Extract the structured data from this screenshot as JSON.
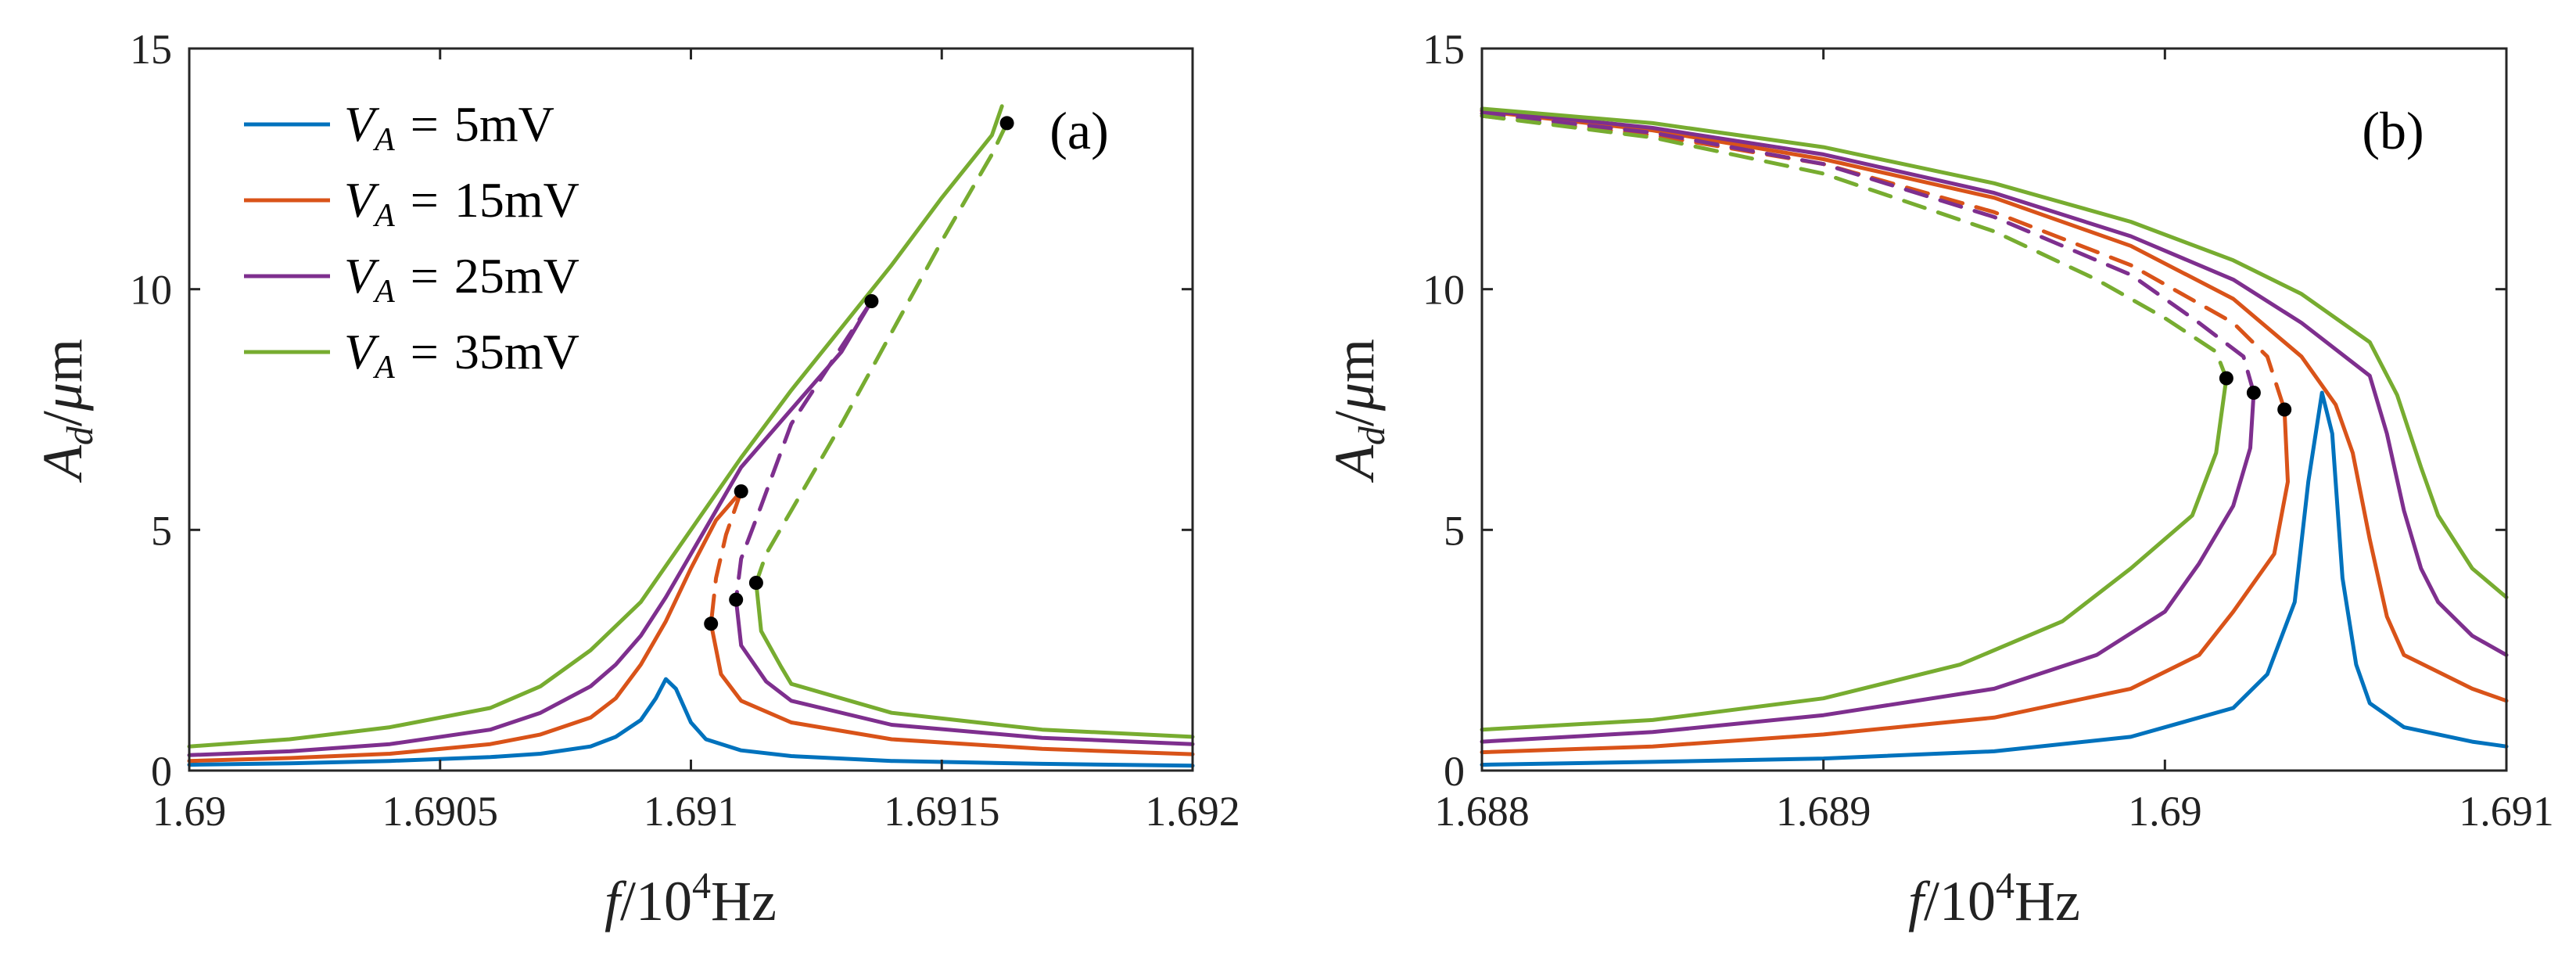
{
  "chart_data": [
    {
      "type": "line",
      "panel_label": "(a)",
      "xlabel": "f/10^4Hz",
      "ylabel": "A_d/μm",
      "xlim": [
        1.69,
        1.692
      ],
      "ylim": [
        0,
        15
      ],
      "xticks": [
        1.69,
        1.6905,
        1.691,
        1.6915,
        1.692
      ],
      "xtick_labels": [
        "1.69",
        "1.6905",
        "1.691",
        "1.6915",
        "1.692"
      ],
      "yticks": [
        0,
        5,
        10,
        15
      ],
      "ytick_labels": [
        "0",
        "5",
        "10",
        "15"
      ],
      "legend_position": "top-left",
      "series": [
        {
          "name": "V_A = 5mV",
          "legend_var": "V",
          "legend_sub": "A",
          "legend_eq": "=",
          "legend_val": "5mV",
          "color": "#0072BD",
          "style": "solid",
          "points": [
            [
              1.69,
              0.12
            ],
            [
              1.6902,
              0.15
            ],
            [
              1.6904,
              0.2
            ],
            [
              1.6906,
              0.28
            ],
            [
              1.6907,
              0.35
            ],
            [
              1.6908,
              0.5
            ],
            [
              1.69085,
              0.7
            ],
            [
              1.6909,
              1.05
            ],
            [
              1.69093,
              1.5
            ],
            [
              1.69095,
              1.9
            ],
            [
              1.69097,
              1.7
            ],
            [
              1.691,
              1.0
            ],
            [
              1.69103,
              0.65
            ],
            [
              1.6911,
              0.42
            ],
            [
              1.6912,
              0.3
            ],
            [
              1.6914,
              0.2
            ],
            [
              1.6917,
              0.14
            ],
            [
              1.692,
              0.1
            ]
          ]
        },
        {
          "name": "V_A = 15mV",
          "legend_var": "V",
          "legend_sub": "A",
          "legend_eq": "=",
          "legend_val": "15mV",
          "color": "#D95319",
          "style": "solid",
          "points": [
            [
              1.69,
              0.2
            ],
            [
              1.6902,
              0.26
            ],
            [
              1.6904,
              0.35
            ],
            [
              1.6906,
              0.55
            ],
            [
              1.6907,
              0.75
            ],
            [
              1.6908,
              1.1
            ],
            [
              1.69085,
              1.5
            ],
            [
              1.6909,
              2.2
            ],
            [
              1.69095,
              3.1
            ],
            [
              1.691,
              4.2
            ],
            [
              1.69105,
              5.2
            ],
            [
              1.6911,
              5.8
            ]
          ]
        },
        {
          "name": "V_A = 15mV (lower)",
          "color": "#D95319",
          "style": "solid",
          "points": [
            [
              1.69104,
              3.05
            ],
            [
              1.69106,
              2.0
            ],
            [
              1.6911,
              1.45
            ],
            [
              1.6912,
              1.0
            ],
            [
              1.6914,
              0.65
            ],
            [
              1.6917,
              0.45
            ],
            [
              1.692,
              0.34
            ]
          ]
        },
        {
          "name": "V_A = 15mV (unstable)",
          "color": "#D95319",
          "style": "dashed",
          "points": [
            [
              1.6911,
              5.8
            ],
            [
              1.69107,
              4.9
            ],
            [
              1.69105,
              4.0
            ],
            [
              1.69104,
              3.05
            ]
          ]
        },
        {
          "name": "V_A = 25mV",
          "legend_var": "V",
          "legend_sub": "A",
          "legend_eq": "=",
          "legend_val": "25mV",
          "color": "#7E2F8E",
          "style": "solid",
          "points": [
            [
              1.69,
              0.32
            ],
            [
              1.6902,
              0.4
            ],
            [
              1.6904,
              0.55
            ],
            [
              1.6906,
              0.85
            ],
            [
              1.6907,
              1.2
            ],
            [
              1.6908,
              1.75
            ],
            [
              1.69085,
              2.2
            ],
            [
              1.6909,
              2.8
            ],
            [
              1.69095,
              3.6
            ],
            [
              1.691,
              4.5
            ],
            [
              1.69105,
              5.4
            ],
            [
              1.6911,
              6.3
            ],
            [
              1.6912,
              7.5
            ],
            [
              1.6913,
              8.7
            ],
            [
              1.69136,
              9.75
            ]
          ]
        },
        {
          "name": "V_A = 25mV (lower)",
          "color": "#7E2F8E",
          "style": "solid",
          "points": [
            [
              1.69109,
              3.55
            ],
            [
              1.6911,
              2.6
            ],
            [
              1.69115,
              1.85
            ],
            [
              1.6912,
              1.45
            ],
            [
              1.6914,
              0.95
            ],
            [
              1.6917,
              0.68
            ],
            [
              1.692,
              0.55
            ]
          ]
        },
        {
          "name": "V_A = 25mV (unstable)",
          "color": "#7E2F8E",
          "style": "dashed",
          "points": [
            [
              1.69136,
              9.75
            ],
            [
              1.6913,
              8.8
            ],
            [
              1.6912,
              7.2
            ],
            [
              1.69114,
              5.5
            ],
            [
              1.6911,
              4.4
            ],
            [
              1.69109,
              3.55
            ]
          ]
        },
        {
          "name": "V_A = 35mV",
          "legend_var": "V",
          "legend_sub": "A",
          "legend_eq": "=",
          "legend_val": "35mV",
          "color": "#77AC30",
          "style": "solid",
          "points": [
            [
              1.69,
              0.5
            ],
            [
              1.6902,
              0.65
            ],
            [
              1.6904,
              0.9
            ],
            [
              1.6906,
              1.3
            ],
            [
              1.6907,
              1.75
            ],
            [
              1.6908,
              2.5
            ],
            [
              1.6909,
              3.5
            ],
            [
              1.691,
              5.0
            ],
            [
              1.6911,
              6.5
            ],
            [
              1.6912,
              7.9
            ],
            [
              1.6913,
              9.2
            ],
            [
              1.6914,
              10.5
            ],
            [
              1.6915,
              11.9
            ],
            [
              1.6916,
              13.2
            ],
            [
              1.69162,
              13.8
            ]
          ]
        },
        {
          "name": "V_A = 35mV (lower)",
          "color": "#77AC30",
          "style": "solid",
          "points": [
            [
              1.69113,
              3.9
            ],
            [
              1.69114,
              2.9
            ],
            [
              1.69118,
              2.15
            ],
            [
              1.6912,
              1.8
            ],
            [
              1.6914,
              1.2
            ],
            [
              1.6917,
              0.85
            ],
            [
              1.692,
              0.7
            ]
          ]
        },
        {
          "name": "V_A = 35mV (unstable)",
          "color": "#77AC30",
          "style": "dashed",
          "points": [
            [
              1.69163,
              13.45
            ],
            [
              1.6916,
              12.8
            ],
            [
              1.6915,
              11.0
            ],
            [
              1.6914,
              9.1
            ],
            [
              1.6913,
              7.2
            ],
            [
              1.6912,
              5.4
            ],
            [
              1.69115,
              4.5
            ],
            [
              1.69113,
              3.9
            ]
          ]
        }
      ],
      "markers": [
        [
          1.69104,
          3.05
        ],
        [
          1.6911,
          5.8
        ],
        [
          1.69109,
          3.55
        ],
        [
          1.69136,
          9.75
        ],
        [
          1.69113,
          3.9
        ],
        [
          1.69163,
          13.45
        ]
      ]
    },
    {
      "type": "line",
      "panel_label": "(b)",
      "xlabel": "f/10^4Hz",
      "ylabel": "A_d/μm",
      "xlim": [
        1.688,
        1.691
      ],
      "ylim": [
        0,
        15
      ],
      "xticks": [
        1.688,
        1.689,
        1.69,
        1.691
      ],
      "xtick_labels": [
        "1.688",
        "1.689",
        "1.69",
        "1.691"
      ],
      "yticks": [
        0,
        5,
        10,
        15
      ],
      "ytick_labels": [
        "0",
        "5",
        "10",
        "15"
      ],
      "series": [
        {
          "name": "V_A = 5mV",
          "color": "#0072BD",
          "style": "solid",
          "points": [
            [
              1.688,
              0.12
            ],
            [
              1.6885,
              0.18
            ],
            [
              1.689,
              0.25
            ],
            [
              1.6895,
              0.4
            ],
            [
              1.6899,
              0.7
            ],
            [
              1.6902,
              1.3
            ],
            [
              1.6903,
              2.0
            ],
            [
              1.69038,
              3.5
            ],
            [
              1.69042,
              6.0
            ],
            [
              1.69046,
              7.85
            ],
            [
              1.69049,
              7.0
            ],
            [
              1.69052,
              4.0
            ],
            [
              1.69056,
              2.2
            ],
            [
              1.6906,
              1.4
            ],
            [
              1.6907,
              0.9
            ],
            [
              1.6909,
              0.6
            ],
            [
              1.691,
              0.5
            ]
          ]
        },
        {
          "name": "V_A = 15mV (upper)",
          "color": "#D95319",
          "style": "solid",
          "points": [
            [
              1.688,
              13.7
            ],
            [
              1.6885,
              13.3
            ],
            [
              1.689,
              12.7
            ],
            [
              1.6895,
              11.9
            ],
            [
              1.6899,
              10.9
            ],
            [
              1.6902,
              9.8
            ],
            [
              1.6904,
              8.6
            ],
            [
              1.6905,
              7.6
            ],
            [
              1.69055,
              6.6
            ],
            [
              1.6906,
              4.8
            ],
            [
              1.69065,
              3.2
            ],
            [
              1.6907,
              2.4
            ],
            [
              1.6909,
              1.7
            ],
            [
              1.691,
              1.45
            ]
          ]
        },
        {
          "name": "V_A = 15mV (lower)",
          "color": "#D95319",
          "style": "solid",
          "points": [
            [
              1.688,
              0.38
            ],
            [
              1.6885,
              0.5
            ],
            [
              1.689,
              0.75
            ],
            [
              1.6895,
              1.1
            ],
            [
              1.6899,
              1.7
            ],
            [
              1.6901,
              2.4
            ],
            [
              1.6902,
              3.3
            ],
            [
              1.69032,
              4.5
            ],
            [
              1.69036,
              6.0
            ],
            [
              1.69035,
              7.5
            ]
          ]
        },
        {
          "name": "V_A = 15mV (unstable)",
          "color": "#D95319",
          "style": "dashed",
          "points": [
            [
              1.688,
              13.6
            ],
            [
              1.6885,
              13.2
            ],
            [
              1.689,
              12.6
            ],
            [
              1.6895,
              11.6
            ],
            [
              1.6899,
              10.5
            ],
            [
              1.6902,
              9.3
            ],
            [
              1.6903,
              8.6
            ],
            [
              1.69035,
              7.5
            ]
          ]
        },
        {
          "name": "V_A = 25mV (upper)",
          "color": "#7E2F8E",
          "style": "solid",
          "points": [
            [
              1.688,
              13.72
            ],
            [
              1.6885,
              13.35
            ],
            [
              1.689,
              12.8
            ],
            [
              1.6895,
              12.0
            ],
            [
              1.6899,
              11.1
            ],
            [
              1.6902,
              10.2
            ],
            [
              1.6904,
              9.3
            ],
            [
              1.6906,
              8.2
            ],
            [
              1.69065,
              7.0
            ],
            [
              1.6907,
              5.4
            ],
            [
              1.69075,
              4.2
            ],
            [
              1.6908,
              3.5
            ],
            [
              1.6909,
              2.8
            ],
            [
              1.691,
              2.4
            ]
          ]
        },
        {
          "name": "V_A = 25mV (lower)",
          "color": "#7E2F8E",
          "style": "solid",
          "points": [
            [
              1.688,
              0.6
            ],
            [
              1.6885,
              0.8
            ],
            [
              1.689,
              1.15
            ],
            [
              1.6895,
              1.7
            ],
            [
              1.6898,
              2.4
            ],
            [
              1.69,
              3.3
            ],
            [
              1.6901,
              4.3
            ],
            [
              1.6902,
              5.5
            ],
            [
              1.69025,
              6.7
            ],
            [
              1.69026,
              7.85
            ]
          ]
        },
        {
          "name": "V_A = 25mV (unstable)",
          "color": "#7E2F8E",
          "style": "dashed",
          "points": [
            [
              1.688,
              13.65
            ],
            [
              1.6885,
              13.25
            ],
            [
              1.689,
              12.6
            ],
            [
              1.6895,
              11.5
            ],
            [
              1.6899,
              10.3
            ],
            [
              1.6901,
              9.3
            ],
            [
              1.69023,
              8.6
            ],
            [
              1.69026,
              7.85
            ]
          ]
        },
        {
          "name": "V_A = 35mV (upper)",
          "color": "#77AC30",
          "style": "solid",
          "points": [
            [
              1.688,
              13.75
            ],
            [
              1.6885,
              13.45
            ],
            [
              1.689,
              12.95
            ],
            [
              1.6895,
              12.2
            ],
            [
              1.6899,
              11.4
            ],
            [
              1.6902,
              10.6
            ],
            [
              1.6904,
              9.9
            ],
            [
              1.6906,
              8.9
            ],
            [
              1.69068,
              7.8
            ],
            [
              1.69075,
              6.3
            ],
            [
              1.6908,
              5.3
            ],
            [
              1.6909,
              4.2
            ],
            [
              1.691,
              3.6
            ]
          ]
        },
        {
          "name": "V_A = 35mV (lower)",
          "color": "#77AC30",
          "style": "solid",
          "points": [
            [
              1.688,
              0.85
            ],
            [
              1.6885,
              1.05
            ],
            [
              1.689,
              1.5
            ],
            [
              1.6894,
              2.2
            ],
            [
              1.6897,
              3.1
            ],
            [
              1.6899,
              4.2
            ],
            [
              1.69008,
              5.3
            ],
            [
              1.69015,
              6.6
            ],
            [
              1.69018,
              8.15
            ]
          ]
        },
        {
          "name": "V_A = 35mV (unstable)",
          "color": "#77AC30",
          "style": "dashed",
          "points": [
            [
              1.688,
              13.6
            ],
            [
              1.6885,
              13.15
            ],
            [
              1.689,
              12.4
            ],
            [
              1.6895,
              11.2
            ],
            [
              1.6898,
              10.2
            ],
            [
              1.69,
              9.4
            ],
            [
              1.69015,
              8.7
            ],
            [
              1.69018,
              8.15
            ]
          ]
        }
      ],
      "markers": [
        [
          1.69018,
          8.15
        ],
        [
          1.69026,
          7.85
        ],
        [
          1.69035,
          7.5
        ]
      ]
    }
  ]
}
